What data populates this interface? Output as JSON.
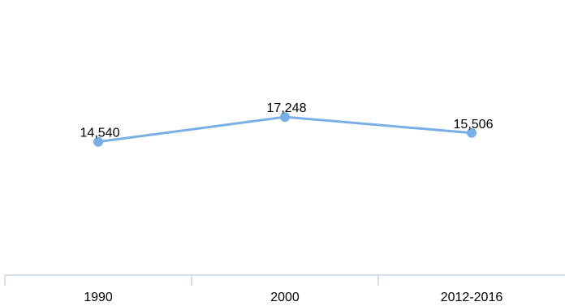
{
  "chart_data": {
    "type": "line",
    "categories": [
      "1990",
      "2000",
      "2012-2016"
    ],
    "series": [
      {
        "values": [
          14540,
          17248,
          15506
        ],
        "labels": [
          "14,540",
          "17,248",
          "15,506"
        ]
      }
    ],
    "title": "",
    "xlabel": "",
    "ylabel": "",
    "ylim": [
      0,
      30000
    ],
    "grid": false,
    "legend": "none"
  },
  "colors": {
    "line": "#7aaee6",
    "marker": "#7aaee6",
    "axis": "#c5d3e6"
  }
}
